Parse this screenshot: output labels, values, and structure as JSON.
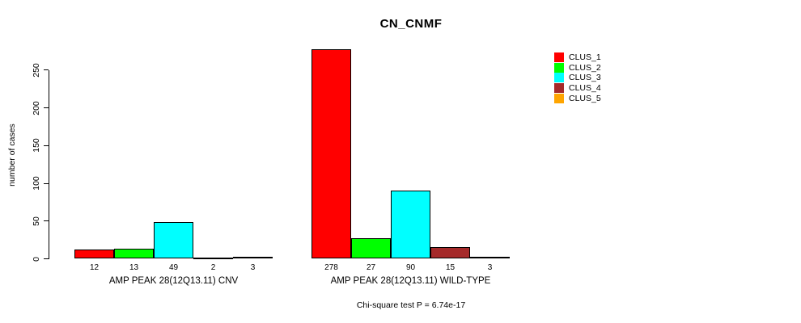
{
  "title": "CN_CNMF",
  "footer": "Chi-square test P = 6.74e-17",
  "y_axis": {
    "label": "number of cases",
    "tick_labels": [
      "0",
      "50",
      "100",
      "150",
      "200",
      "250"
    ]
  },
  "legend": {
    "items": [
      {
        "label": "CLUS_1",
        "color": "#FF0000"
      },
      {
        "label": "CLUS_2",
        "color": "#00FF00"
      },
      {
        "label": "CLUS_3",
        "color": "#00FFFF"
      },
      {
        "label": "CLUS_4",
        "color": "#A52A2A"
      },
      {
        "label": "CLUS_5",
        "color": "#FFA500"
      }
    ]
  },
  "chart_data": {
    "type": "bar",
    "title": "CN_CNMF",
    "xlabel": "",
    "ylabel": "number of cases",
    "ylim": [
      0,
      250
    ],
    "yticks": [
      0,
      50,
      100,
      150,
      200,
      250
    ],
    "grid": false,
    "legend_position": "top-right",
    "categories": [
      "AMP PEAK 28(12Q13.11) CNV",
      "AMP PEAK 28(12Q13.11) WILD-TYPE"
    ],
    "series": [
      {
        "name": "CLUS_1",
        "color": "#FF0000",
        "values": [
          12,
          278
        ]
      },
      {
        "name": "CLUS_2",
        "color": "#00FF00",
        "values": [
          13,
          27
        ]
      },
      {
        "name": "CLUS_3",
        "color": "#00FFFF",
        "values": [
          49,
          90
        ]
      },
      {
        "name": "CLUS_4",
        "color": "#A52A2A",
        "values": [
          2,
          15
        ]
      },
      {
        "name": "CLUS_5",
        "color": "#FFA500",
        "values": [
          3,
          3
        ]
      }
    ],
    "bar_value_labels": [
      [
        "12",
        "13",
        "49",
        "2",
        "3"
      ],
      [
        "278",
        "27",
        "90",
        "15",
        "3"
      ]
    ],
    "annotation": "Chi-square test P = 6.74e-17"
  }
}
